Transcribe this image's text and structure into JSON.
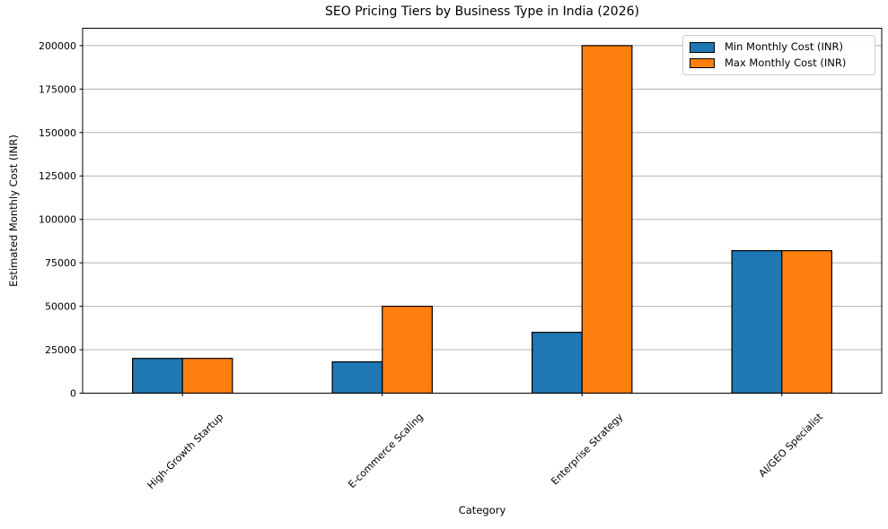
{
  "chart_data": {
    "type": "bar",
    "title": "SEO Pricing Tiers by Business Type in India (2026)",
    "xlabel": "Category",
    "ylabel": "Estimated Monthly Cost (INR)",
    "categories": [
      "High-Growth Startup",
      "E-commerce Scaling",
      "Enterprise Strategy",
      "AI/GEO Specialist"
    ],
    "series": [
      {
        "name": "Min Monthly Cost (INR)",
        "color": "#1f77b4",
        "values": [
          20000,
          18000,
          35000,
          82000
        ]
      },
      {
        "name": "Max Monthly Cost (INR)",
        "color": "#ff7f0e",
        "values": [
          20000,
          50000,
          200000,
          82000
        ]
      }
    ],
    "ylim": [
      0,
      210000
    ],
    "yticks": [
      0,
      25000,
      50000,
      75000,
      100000,
      125000,
      150000,
      175000,
      200000
    ],
    "ytick_labels": [
      "0",
      "25000",
      "50000",
      "75000",
      "100000",
      "125000",
      "150000",
      "175000",
      "200000"
    ],
    "grid": true,
    "grid_color": "#b0b0b0",
    "bar_edge_color": "#000000",
    "axis_color": "#000000",
    "background": "#ffffff",
    "legend_position": "upper right",
    "x_tick_rotation": 45
  }
}
